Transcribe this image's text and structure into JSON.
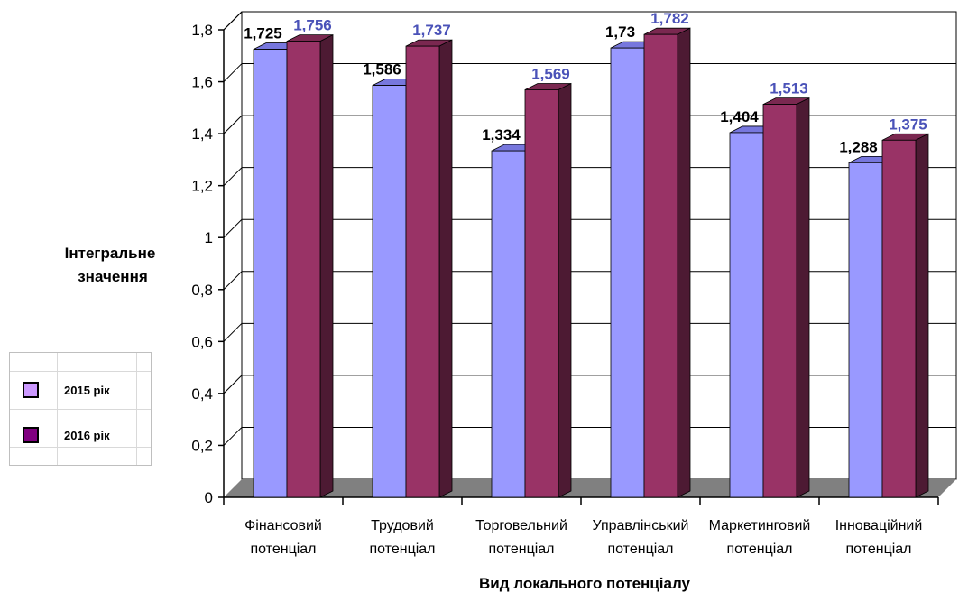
{
  "chart_data": {
    "type": "bar",
    "ylabel": "Інтегральне значення",
    "xlabel": "Вид локального потенціалу",
    "ylim": [
      0,
      1.8
    ],
    "yticks": [
      "0",
      "0,2",
      "0,4",
      "0,6",
      "0,8",
      "1",
      "1,2",
      "1,4",
      "1,6",
      "1,8"
    ],
    "categories": [
      "Фінансовий потенціал",
      "Трудовий потенціал",
      "Торговельний потенціал",
      "Управлінський потенціал",
      "Маркетинговий потенціал",
      "Інноваційний потенціал"
    ],
    "series": [
      {
        "name": "2015 рік",
        "values": [
          1.725,
          1.586,
          1.334,
          1.73,
          1.404,
          1.288
        ],
        "labels": [
          "1,725",
          "1,586",
          "1,334",
          "1,73",
          "1,404",
          "1,288"
        ]
      },
      {
        "name": "2016 рік",
        "values": [
          1.756,
          1.737,
          1.569,
          1.782,
          1.513,
          1.375
        ],
        "labels": [
          "1,756",
          "1,737",
          "1,569",
          "1,782",
          "1,513",
          "1,375"
        ]
      }
    ],
    "grid": true,
    "legend_position": "left",
    "colors": {
      "s1_front": "#9999ff",
      "s1_top": "#7777dd",
      "s1_side": "#5c5ca8",
      "s2_front": "#993366",
      "s2_top": "#7a2850",
      "s2_side": "#4d1a33",
      "floor": "#808080",
      "wall": "#ffffff",
      "grid": "#000000",
      "legend1": "#cc99ff",
      "legend2": "#800080"
    }
  }
}
